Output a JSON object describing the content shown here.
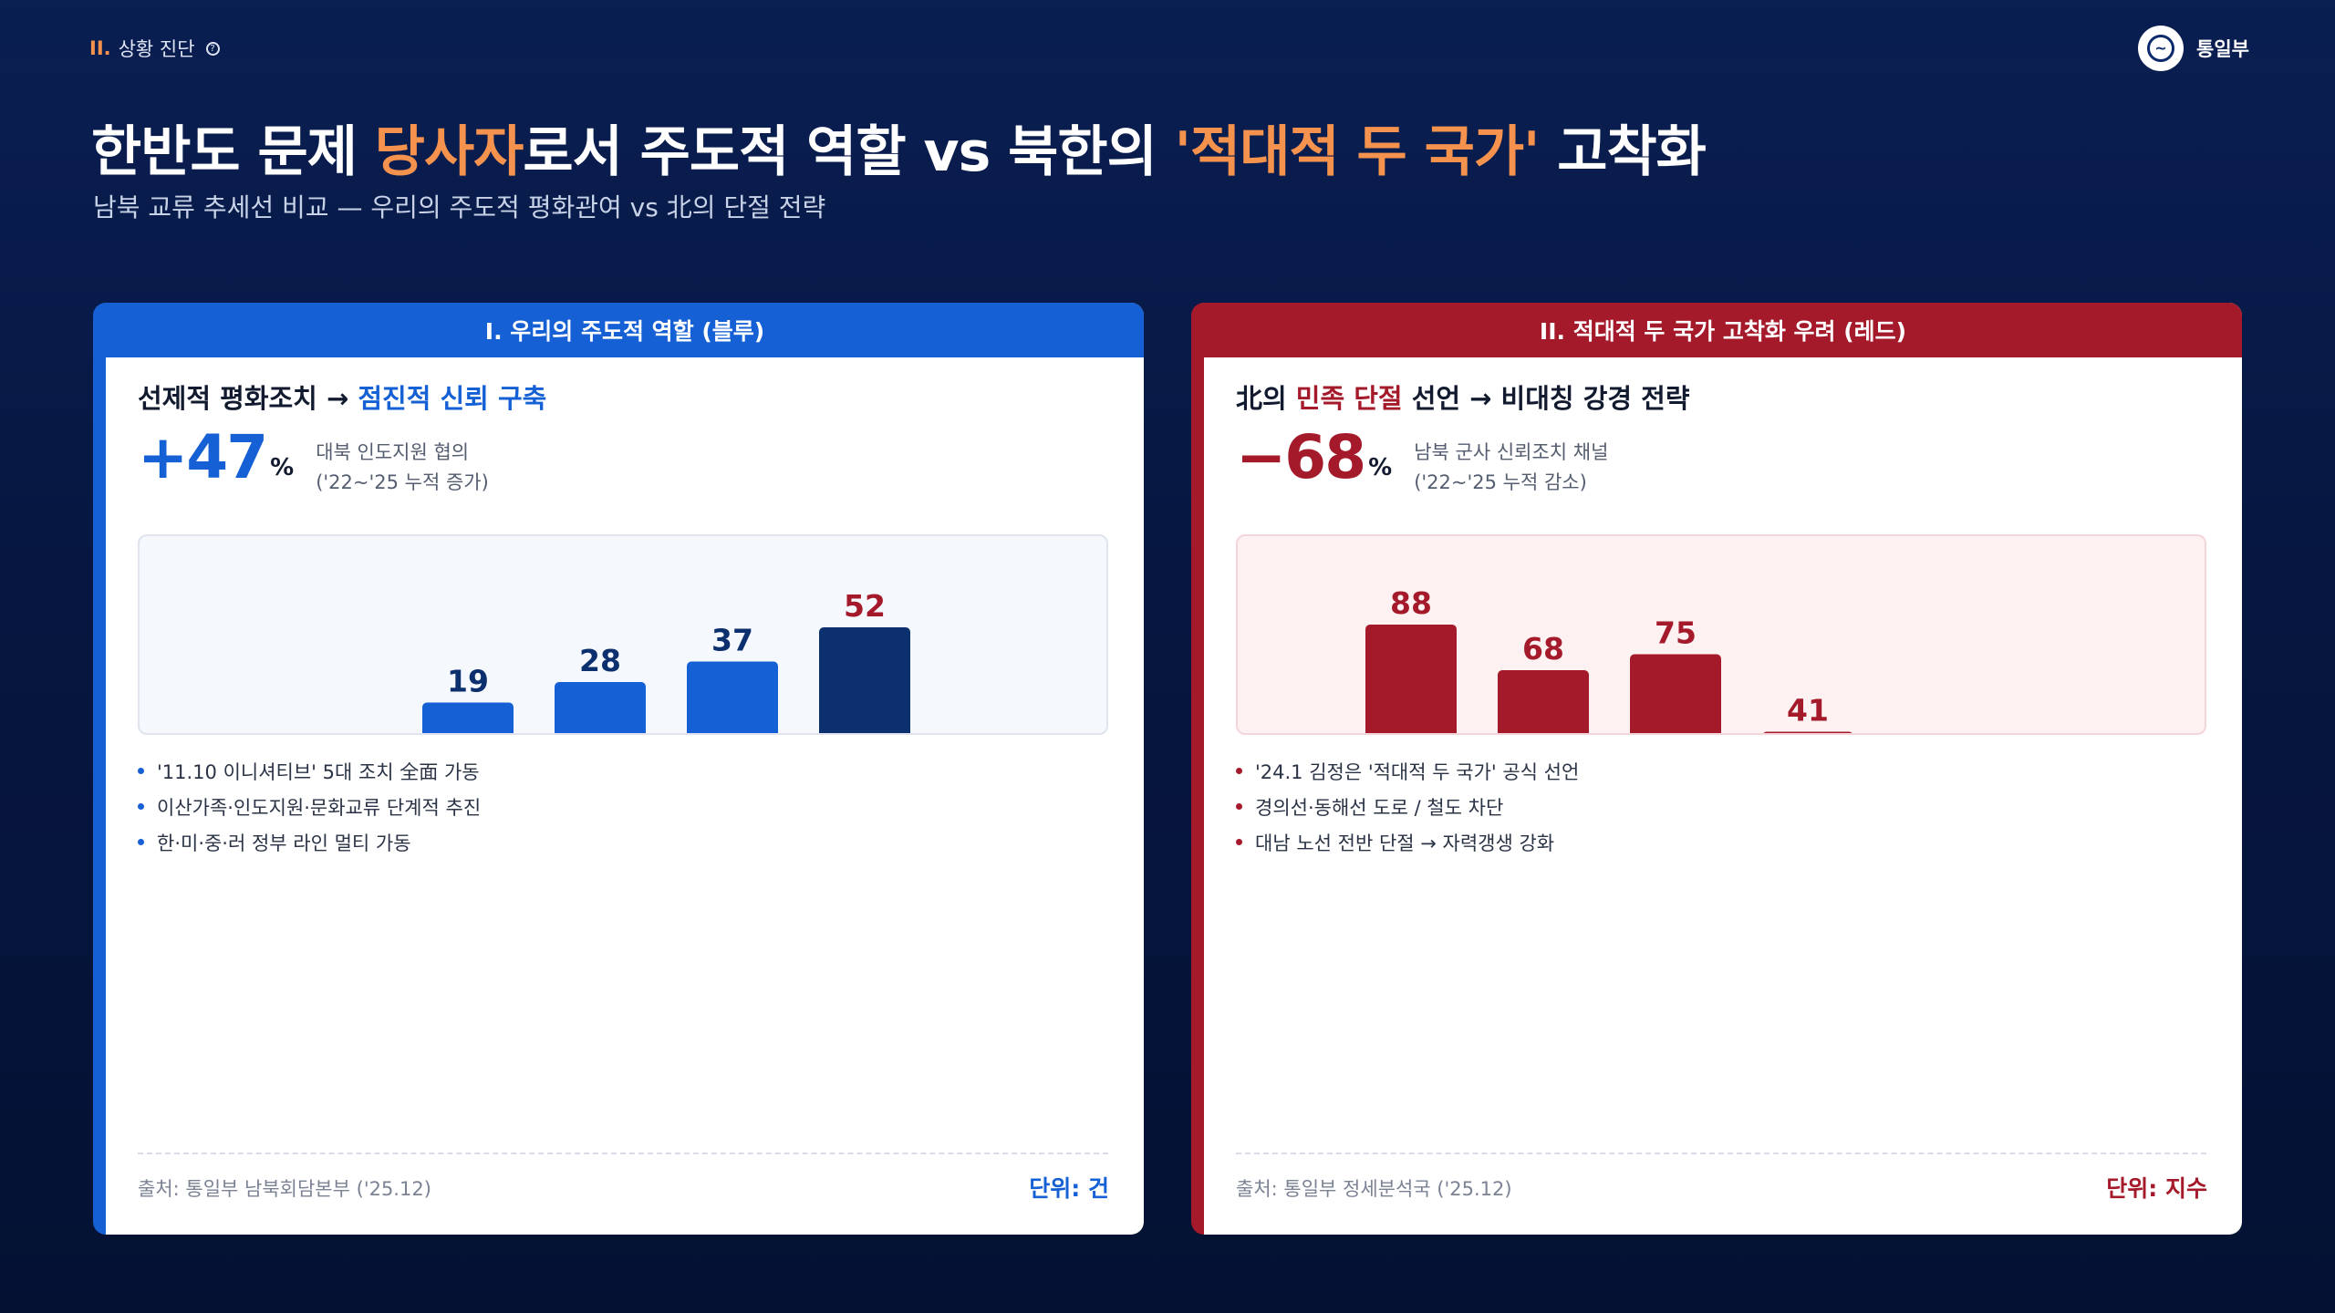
{
  "header": {
    "section_num": "II.",
    "section_label": "상황 진단",
    "help_glyph": "?",
    "brand_name": "통일부",
    "logo_glyph": "~"
  },
  "title": {
    "part1": "한반도 문제 ",
    "hl1": "당사자",
    "part2": "로서 주도적 역할 vs 북한의 ",
    "hl2": "'적대적 두 국가'",
    "part3": " 고착화",
    "subtitle": "남북 교류 추세선 비교 — 우리의 주도적 평화관여 vs 北의 단절 전략"
  },
  "colors": {
    "blue": "#1560d4",
    "navy": "#0c2f6e",
    "red": "#a51a2a",
    "orange": "#f5924e"
  },
  "left_card": {
    "header": "I. 우리의 주도적 역할 (블루)",
    "title_plain": "선제적 평화조치 → ",
    "title_accent": "점진적 신뢰 구축",
    "kpi_value": "+47",
    "kpi_unit": "%",
    "kpi_desc_line1": "대북 인도지원 협의",
    "kpi_desc_line2": "('22~'25 누적 증가)",
    "bullets": [
      "'11.10 이니셔티브' 5대 조치 全面 가동",
      "이산가족·인도지원·문화교류 단계적 추진",
      "한·미·중·러 정부 라인 멀티 가동"
    ],
    "source": "출처: 통일부 남북회담본부 ('25.12)",
    "unit": "단위: 건"
  },
  "right_card": {
    "header": "II. 적대적 두 국가 고착화 우려 (레드)",
    "title_prefix": "北의 ",
    "title_accent": "민족 단절",
    "title_suffix": " 선언 → 비대칭 강경 전략",
    "kpi_value": "−68",
    "kpi_unit": "%",
    "kpi_desc_line1": "남북 군사 신뢰조치 채널",
    "kpi_desc_line2": "('22~'25 누적 감소)",
    "bullets": [
      "'24.1 김정은 '적대적 두 국가' 공식 선언",
      "경의선·동해선 도로 / 철도 차단",
      "대남 노선 전반 단절 → 자력갱생 강화"
    ],
    "source": "출처: 통일부 정세분석국 ('25.12)",
    "unit": "단위: 지수"
  },
  "chart_data": [
    {
      "type": "bar",
      "values": [
        19,
        28,
        37,
        52
      ],
      "value_colors": [
        "#1560d4",
        "#1560d4",
        "#1560d4",
        "#0c2f6e"
      ],
      "label_colors": [
        "#0c2f6e",
        "#0c2f6e",
        "#0c2f6e",
        "#a51a2a"
      ],
      "ylabel": "",
      "unit": "건"
    },
    {
      "type": "bar",
      "values": [
        88,
        68,
        75,
        41
      ],
      "value_colors": [
        "#a51a2a",
        "#a51a2a",
        "#a51a2a",
        "#a51a2a"
      ],
      "label_colors": [
        "#a51a2a",
        "#a51a2a",
        "#a51a2a",
        "#a51a2a"
      ],
      "ylabel": "",
      "unit": "지수"
    }
  ]
}
